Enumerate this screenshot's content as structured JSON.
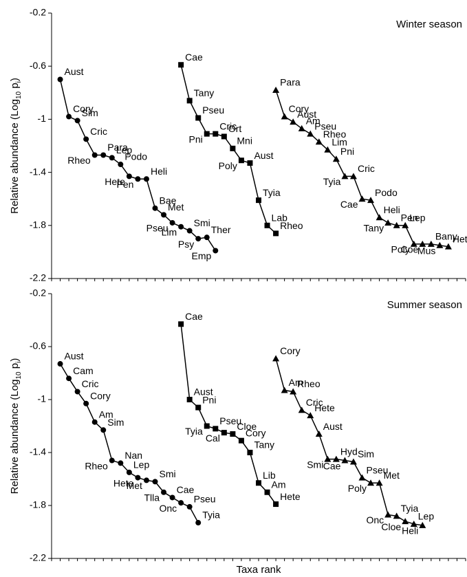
{
  "chart_data": [
    {
      "type": "line",
      "annotation": "Winter season",
      "ylabel": [
        "Relative abundance (Log",
        "10",
        " p",
        "i",
        ")"
      ],
      "xlim": [
        0,
        48
      ],
      "xticks": [
        0,
        1,
        2,
        3,
        4,
        5,
        6,
        7,
        8,
        9,
        10,
        11,
        12,
        13,
        14,
        15,
        16,
        17,
        18,
        19,
        20,
        21,
        22,
        23,
        24,
        25,
        26,
        27,
        28,
        29,
        30,
        31,
        32,
        33,
        34,
        35,
        36,
        37,
        38,
        39,
        40,
        41,
        42,
        43,
        44,
        45,
        46,
        47,
        48
      ],
      "ylim": [
        -2.2,
        -0.2
      ],
      "yticks": [
        -2.2,
        -1.8,
        -1.4,
        -1,
        -0.6,
        -0.2
      ],
      "series": [
        {
          "marker": "circle",
          "color": "#000000",
          "x": [
            1,
            2,
            3,
            4,
            5,
            6,
            7,
            8,
            9,
            10,
            11,
            12,
            13,
            14,
            15,
            16,
            17,
            18,
            19
          ],
          "values": [
            -0.7,
            -0.98,
            -1.01,
            -1.15,
            -1.27,
            -1.27,
            -1.29,
            -1.34,
            -1.43,
            -1.45,
            -1.45,
            -1.67,
            -1.72,
            -1.78,
            -1.81,
            -1.84,
            -1.9,
            -1.89,
            -1.99
          ],
          "labels": [
            "Aust",
            "Cory",
            "Sim",
            "Cric",
            "Rheo",
            "Para",
            "Lep",
            "Podo",
            "Hete",
            "Pen",
            "Heli",
            "Bae",
            "Met",
            "Pseu",
            "Lim",
            "Smi",
            "Psy",
            "Ther",
            "Emp"
          ]
        },
        {
          "marker": "square",
          "color": "#000000",
          "x": [
            15,
            16,
            17,
            18,
            19,
            20,
            21,
            22,
            23,
            24,
            25,
            26
          ],
          "values": [
            -0.59,
            -0.86,
            -0.99,
            -1.11,
            -1.11,
            -1.13,
            -1.22,
            -1.31,
            -1.33,
            -1.61,
            -1.8,
            -1.86
          ],
          "labels": [
            "Cae",
            "Tany",
            "Pseu",
            "Pni",
            "Cric",
            "Ort",
            "Mni",
            "Poly",
            "Aust",
            "Tyia",
            "Lab",
            "Rheo"
          ]
        },
        {
          "marker": "triangle",
          "color": "#000000",
          "x": [
            26,
            27,
            28,
            29,
            30,
            31,
            32,
            33,
            34,
            35,
            36,
            37,
            38,
            39,
            40,
            41,
            42,
            43,
            44,
            45,
            46
          ],
          "values": [
            -0.78,
            -0.98,
            -1.02,
            -1.07,
            -1.11,
            -1.17,
            -1.23,
            -1.3,
            -1.43,
            -1.43,
            -1.6,
            -1.61,
            -1.74,
            -1.78,
            -1.8,
            -1.8,
            -1.94,
            -1.94,
            -1.94,
            -1.95,
            -1.96
          ],
          "labels": [
            "Para",
            "Cory",
            "Aust",
            "Am",
            "Pseu",
            "Rheo",
            "Lim",
            "Pni",
            "Tyia",
            "Cric",
            "Cae",
            "Podo",
            "Heli",
            "Tany",
            "Pen",
            "Lep",
            "Poly",
            "Coe",
            "Bany",
            "Mus",
            "Hete"
          ]
        }
      ]
    },
    {
      "type": "line",
      "annotation": "Summer season",
      "ylabel": [
        "Relative abundance (Log",
        "10",
        " p",
        "i",
        ")"
      ],
      "xlabel": "Taxa rank",
      "xlim": [
        0,
        48
      ],
      "xticks": [
        0,
        1,
        2,
        3,
        4,
        5,
        6,
        7,
        8,
        9,
        10,
        11,
        12,
        13,
        14,
        15,
        16,
        17,
        18,
        19,
        20,
        21,
        22,
        23,
        24,
        25,
        26,
        27,
        28,
        29,
        30,
        31,
        32,
        33,
        34,
        35,
        36,
        37,
        38,
        39,
        40,
        41,
        42,
        43,
        44,
        45,
        46,
        47,
        48
      ],
      "ylim": [
        -2.2,
        -0.2
      ],
      "yticks": [
        -2.2,
        -1.8,
        -1.4,
        -1,
        -0.6,
        -0.2
      ],
      "series": [
        {
          "marker": "circle",
          "color": "#000000",
          "x": [
            1,
            2,
            3,
            4,
            5,
            6,
            7,
            8,
            9,
            10,
            11,
            12,
            13,
            14,
            15,
            16,
            17
          ],
          "values": [
            -0.73,
            -0.84,
            -0.94,
            -1.03,
            -1.17,
            -1.23,
            -1.46,
            -1.48,
            -1.55,
            -1.59,
            -1.61,
            -1.62,
            -1.7,
            -1.74,
            -1.78,
            -1.81,
            -1.93
          ],
          "labels": [
            "Aust",
            "Cam",
            "Cric",
            "Cory",
            "Am",
            "Sim",
            "Rheo",
            "Nan",
            "Lep",
            "Hete",
            "Met",
            "Smi",
            "Tlla",
            "Cae",
            "Onc",
            "Pseu",
            "Tyia"
          ]
        },
        {
          "marker": "square",
          "color": "#000000",
          "x": [
            15,
            16,
            17,
            18,
            19,
            20,
            21,
            22,
            23,
            24,
            25,
            26
          ],
          "values": [
            -0.43,
            -1.0,
            -1.06,
            -1.2,
            -1.22,
            -1.25,
            -1.26,
            -1.31,
            -1.4,
            -1.63,
            -1.7,
            -1.79
          ],
          "labels": [
            "Cae",
            "Aust",
            "Pni",
            "Tyia",
            "Pseu",
            "Cal",
            "Cloe",
            "Cory",
            "Tany",
            "Lib",
            "Am",
            "Hete"
          ]
        },
        {
          "marker": "triangle",
          "color": "#000000",
          "x": [
            26,
            27,
            28,
            29,
            30,
            31,
            32,
            33,
            34,
            35,
            36,
            37,
            38,
            39,
            40,
            41,
            42,
            43
          ],
          "values": [
            -0.69,
            -0.93,
            -0.94,
            -1.08,
            -1.12,
            -1.26,
            -1.45,
            -1.45,
            -1.46,
            -1.47,
            -1.59,
            -1.63,
            -1.63,
            -1.87,
            -1.88,
            -1.92,
            -1.94,
            -1.95
          ],
          "labels": [
            "Cory",
            "Am",
            "Rheo",
            "Cric",
            "Hete",
            "Aust",
            "Smi",
            "Hyd",
            "Cae",
            "Sim",
            "Pseu",
            "Poly",
            "Met",
            "Onc",
            "Tyia",
            "Cloe",
            "Lep",
            "Heli"
          ]
        }
      ]
    }
  ]
}
